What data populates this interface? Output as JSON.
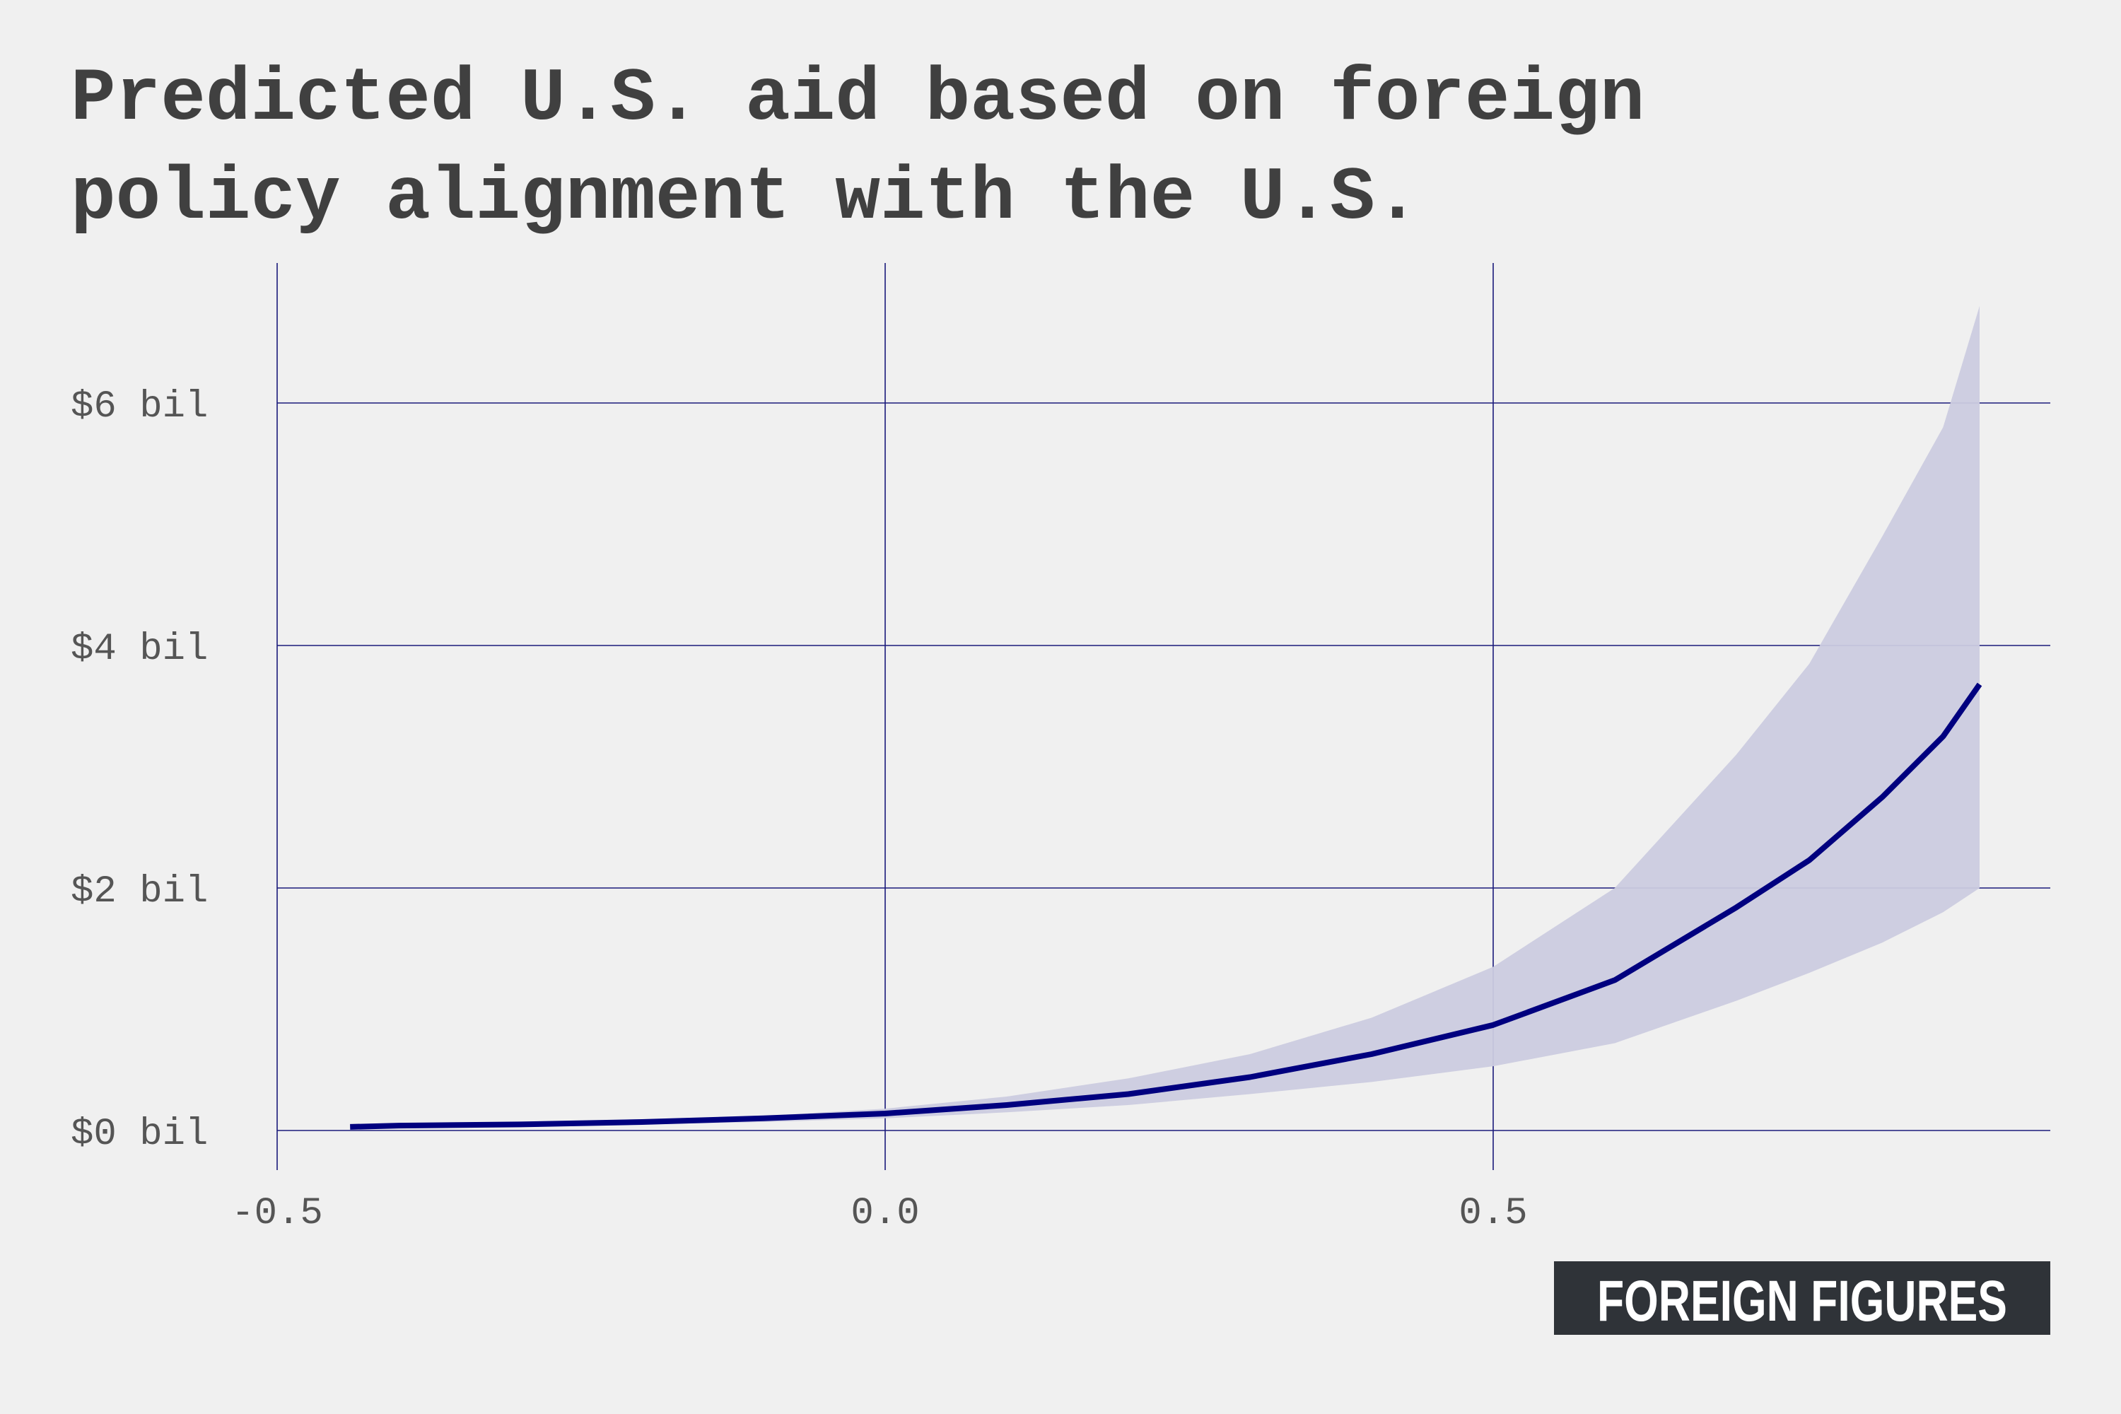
{
  "title_lines": [
    "Predicted U.S. aid based on foreign",
    "policy alignment with the U.S."
  ],
  "brand": {
    "label": "FOREIGN FIGURES"
  },
  "colors": {
    "background": "#f0f0f0",
    "line": "#00007f",
    "band": "#cbcbdf",
    "grid": "#1a1a7a",
    "brand_bg": "#2f3338"
  },
  "chart_data": {
    "type": "line",
    "title": "Predicted U.S. aid based on foreign policy alignment with the U.S.",
    "xlabel": "",
    "ylabel": "",
    "xlim": [
      -0.5,
      0.92
    ],
    "ylim": [
      -0.3,
      7.1
    ],
    "x_ticks": [
      -0.5,
      0.0,
      0.5
    ],
    "x_tick_labels": [
      "-0.5",
      "0.0",
      "0.5"
    ],
    "y_ticks": [
      0,
      2,
      4,
      6
    ],
    "y_tick_labels": [
      "$0 bil",
      "$2 bil",
      "$4 bil",
      "$6 bil"
    ],
    "grid": true,
    "series": [
      {
        "kind": "line",
        "x": [
          -0.44,
          -0.4,
          -0.3,
          -0.2,
          -0.1,
          0.0,
          0.1,
          0.2,
          0.3,
          0.4,
          0.5,
          0.6,
          0.7,
          0.76,
          0.82,
          0.87,
          0.9
        ],
        "values": [
          0.03,
          0.04,
          0.05,
          0.07,
          0.1,
          0.14,
          0.21,
          0.3,
          0.44,
          0.63,
          0.87,
          1.24,
          1.84,
          2.23,
          2.75,
          3.25,
          3.68
        ]
      },
      {
        "kind": "band",
        "x": [
          -0.44,
          -0.4,
          -0.3,
          -0.2,
          -0.1,
          0.0,
          0.1,
          0.2,
          0.3,
          0.4,
          0.5,
          0.6,
          0.7,
          0.76,
          0.82,
          0.87,
          0.9
        ],
        "lower": [
          0.02,
          0.03,
          0.04,
          0.05,
          0.07,
          0.1,
          0.15,
          0.21,
          0.3,
          0.4,
          0.53,
          0.72,
          1.07,
          1.3,
          1.55,
          1.8,
          2.0
        ],
        "upper": [
          0.04,
          0.05,
          0.07,
          0.09,
          0.12,
          0.18,
          0.28,
          0.43,
          0.63,
          0.93,
          1.35,
          2.0,
          3.1,
          3.85,
          4.9,
          5.8,
          6.8
        ]
      }
    ]
  }
}
